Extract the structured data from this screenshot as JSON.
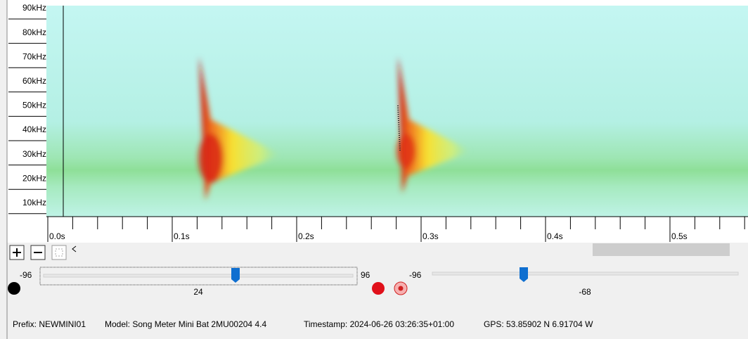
{
  "frequency_axis": {
    "labels": [
      "90kHz",
      "80kHz",
      "70kHz",
      "60kHz",
      "50kHz",
      "40kHz",
      "30kHz",
      "20kHz",
      "10kHz"
    ]
  },
  "time_axis": {
    "labels": [
      "0.0s",
      "0.1s",
      "0.2s",
      "0.3s",
      "0.4s",
      "0.5s"
    ]
  },
  "gain_slider": {
    "min": "-96",
    "max": "96",
    "value": "24"
  },
  "threshold_slider": {
    "min": "-96",
    "value": "-68"
  },
  "status_bar": {
    "prefix": "Prefix: NEWMINI01",
    "model": "Model: Song Meter Mini Bat 2MU00204 4.4",
    "timestamp": "Timestamp: 2024-06-26 03:26:35+01:00",
    "gps": "GPS:  53.85902 N 6.91704 W"
  }
}
